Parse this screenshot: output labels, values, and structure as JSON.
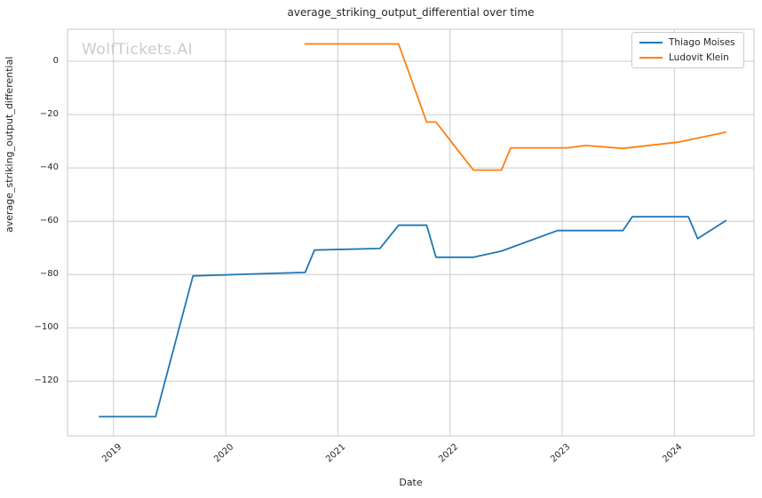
{
  "watermark": "WolfTickets.AI",
  "chart_data": {
    "type": "line",
    "title": "average_striking_output_differential over time",
    "xlabel": "Date",
    "ylabel": "average_striking_output_differential",
    "legend_position": "upper right",
    "grid": true,
    "background_color": "#ffffff",
    "grid_color": "#cccccc",
    "axis_edge_color": "#c8c8c8",
    "text_color": "#262626",
    "watermark_color": "#cccccc",
    "xlim_decimal_years": [
      2018.59,
      2024.71
    ],
    "ylim": [
      -140.5,
      12
    ],
    "x_ticks": [
      {
        "v": 2019,
        "label": "2019"
      },
      {
        "v": 2020,
        "label": "2020"
      },
      {
        "v": 2021,
        "label": "2021"
      },
      {
        "v": 2022,
        "label": "2022"
      },
      {
        "v": 2023,
        "label": "2023"
      },
      {
        "v": 2024,
        "label": "2024"
      }
    ],
    "y_ticks": [
      {
        "v": 0,
        "label": "0"
      },
      {
        "v": -20,
        "label": "−20"
      },
      {
        "v": -40,
        "label": "−40"
      },
      {
        "v": -60,
        "label": "−60"
      },
      {
        "v": -80,
        "label": "−80"
      },
      {
        "v": -100,
        "label": "−100"
      },
      {
        "v": -120,
        "label": "−120"
      }
    ],
    "series": [
      {
        "name": "Thiago Moises",
        "color": "#1f77b4",
        "points": [
          {
            "date": "2018-11",
            "value": -133.3
          },
          {
            "date": "2019-05",
            "value": -133.3
          },
          {
            "date": "2019-09",
            "value": -80.5
          },
          {
            "date": "2020-05",
            "value": -79.6
          },
          {
            "date": "2020-09",
            "value": -79.2
          },
          {
            "date": "2020-10",
            "value": -70.8
          },
          {
            "date": "2021-05",
            "value": -70.2
          },
          {
            "date": "2021-07",
            "value": -61.5
          },
          {
            "date": "2021-10",
            "value": -61.5
          },
          {
            "date": "2021-11",
            "value": -73.5
          },
          {
            "date": "2022-03",
            "value": -73.5
          },
          {
            "date": "2022-06",
            "value": -71.2
          },
          {
            "date": "2022-12",
            "value": -63.5
          },
          {
            "date": "2023-07",
            "value": -63.5
          },
          {
            "date": "2023-08",
            "value": -58.3
          },
          {
            "date": "2024-02",
            "value": -58.3
          },
          {
            "date": "2024-03",
            "value": -66.5
          },
          {
            "date": "2024-06",
            "value": -59.8
          }
        ]
      },
      {
        "name": "Ludovit Klein",
        "color": "#ff7f0e",
        "points": [
          {
            "date": "2020-09",
            "value": 6.5
          },
          {
            "date": "2021-07",
            "value": 6.5
          },
          {
            "date": "2021-10",
            "value": -22.8
          },
          {
            "date": "2021-11",
            "value": -22.8
          },
          {
            "date": "2022-03",
            "value": -40.8
          },
          {
            "date": "2022-06",
            "value": -40.8
          },
          {
            "date": "2022-07",
            "value": -32.5
          },
          {
            "date": "2023-01",
            "value": -32.5
          },
          {
            "date": "2023-03",
            "value": -31.6
          },
          {
            "date": "2023-07",
            "value": -32.7
          },
          {
            "date": "2024-01",
            "value": -30.3
          },
          {
            "date": "2024-06",
            "value": -26.6
          }
        ]
      }
    ]
  }
}
